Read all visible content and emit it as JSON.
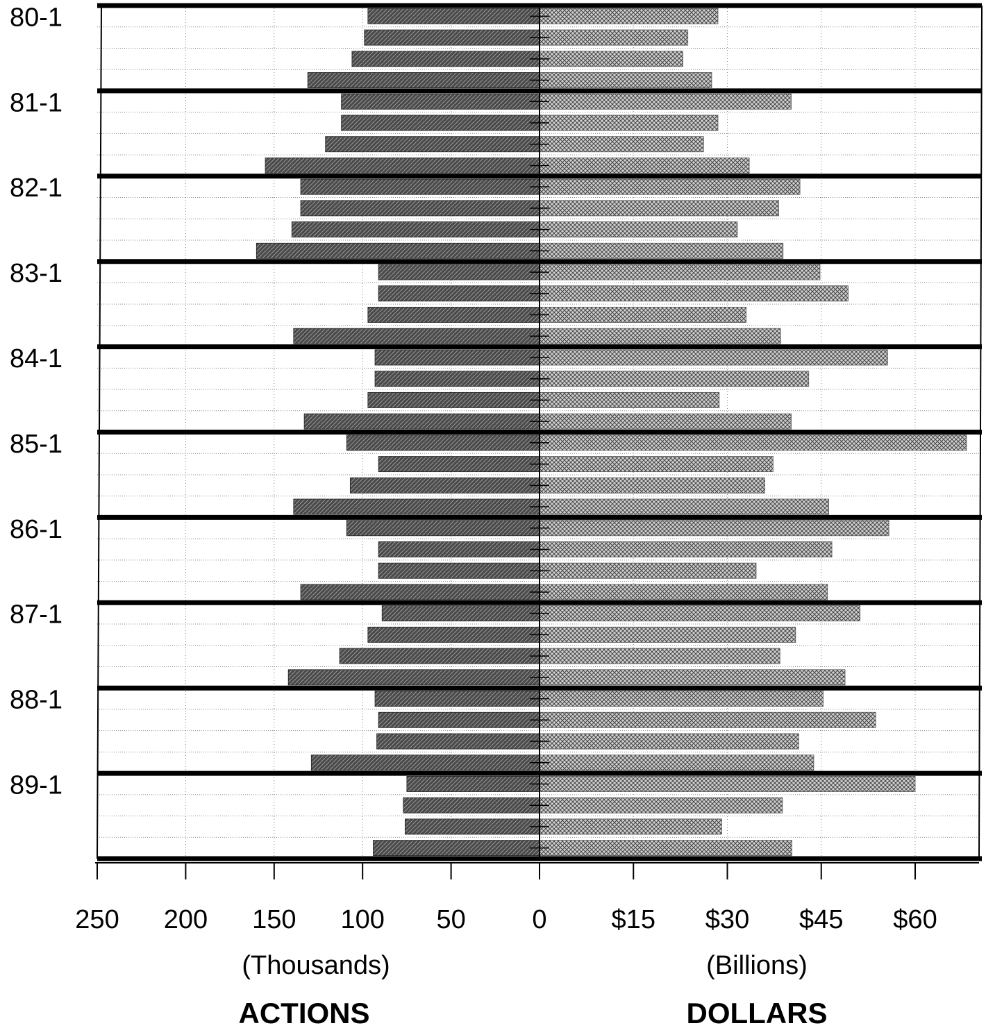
{
  "chart_data": {
    "type": "bar",
    "orientation": "horizontal-diverging",
    "periods": [
      {
        "label": "80-1",
        "actions": [
          97,
          99,
          106,
          131
        ],
        "dollars": [
          28.5,
          23.7,
          22.9,
          27.5
        ]
      },
      {
        "label": "81-1",
        "actions": [
          112,
          112,
          121,
          155
        ],
        "dollars": [
          40.2,
          28.5,
          26.2,
          33.5
        ]
      },
      {
        "label": "82-1",
        "actions": [
          135,
          135,
          140,
          160
        ],
        "dollars": [
          41.6,
          38.2,
          31.6,
          38.9
        ]
      },
      {
        "label": "83-1",
        "actions": [
          91,
          91,
          97,
          139
        ],
        "dollars": [
          44.8,
          49.3,
          33.0,
          38.5
        ]
      },
      {
        "label": "84-1",
        "actions": [
          93,
          93,
          97,
          133
        ],
        "dollars": [
          55.6,
          43.0,
          28.7,
          40.2
        ]
      },
      {
        "label": "85-1",
        "actions": [
          109,
          91,
          107,
          139
        ],
        "dollars": [
          68.2,
          37.3,
          36.0,
          46.2
        ]
      },
      {
        "label": "86-1",
        "actions": [
          109,
          91,
          91,
          135
        ],
        "dollars": [
          55.8,
          46.7,
          34.6,
          46.0
        ]
      },
      {
        "label": "87-1",
        "actions": [
          89,
          97,
          113,
          142
        ],
        "dollars": [
          51.2,
          40.9,
          38.4,
          48.8
        ]
      },
      {
        "label": "88-1",
        "actions": [
          93,
          91,
          92,
          129
        ],
        "dollars": [
          45.3,
          53.7,
          41.4,
          43.8
        ]
      },
      {
        "label": "89-1",
        "actions": [
          75,
          77,
          76,
          94
        ],
        "dollars": [
          60.0,
          38.8,
          29.1,
          40.3
        ]
      }
    ],
    "left_axis": {
      "ticks": [
        "250",
        "200",
        "150",
        "100",
        "50",
        "0"
      ],
      "tick_values": [
        250,
        200,
        150,
        100,
        50,
        0
      ],
      "xlim": [
        250,
        0
      ],
      "unit": "(Thousands)",
      "title": "ACTIONS"
    },
    "right_axis": {
      "ticks": [
        "$15",
        "$30",
        "$45",
        "$60"
      ],
      "tick_values": [
        15,
        30,
        45,
        60
      ],
      "xlim": [
        0,
        70
      ],
      "unit": "(Billions)",
      "title": "DOLLARS"
    },
    "grid": true,
    "colors": {
      "actions_bar": "#555555",
      "dollars_bar": "#b5b5b5",
      "border": "#000000",
      "gridline": "#888888"
    }
  }
}
